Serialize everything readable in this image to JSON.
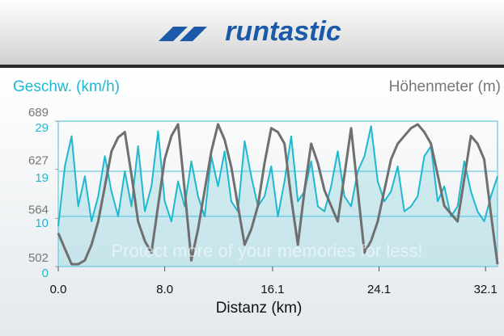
{
  "header": {
    "logo": "runtastic"
  },
  "chart_data": {
    "type": "line",
    "y_label": "Geschw. (km/h)",
    "y2_label": "Höhenmeter (m)",
    "x_label": "Distanz (km)",
    "annotation": "Protect more of your memories for less!",
    "x": [
      0,
      0.5,
      1,
      1.5,
      2,
      2.5,
      3,
      3.5,
      4,
      4.5,
      5,
      5.5,
      6,
      6.5,
      7,
      7.5,
      8,
      8.5,
      9,
      9.5,
      10,
      10.5,
      11,
      11.5,
      12,
      12.5,
      13,
      13.5,
      14,
      14.5,
      15,
      15.5,
      16,
      16.5,
      17,
      17.5,
      18,
      18.5,
      19,
      19.5,
      20,
      20.5,
      21,
      21.5,
      22,
      22.5,
      23,
      23.5,
      24,
      24.5,
      25,
      25.5,
      26,
      26.5,
      27,
      27.5,
      28,
      28.5,
      29,
      29.5,
      30,
      30.5,
      31,
      31.5,
      32,
      32.5,
      33
    ],
    "series": [
      {
        "name": "Geschw. (km/h)",
        "color": "#1fb8cf",
        "values": [
          8,
          20,
          26,
          12,
          18,
          9,
          14,
          22,
          15,
          10,
          19,
          12,
          24,
          11,
          16,
          27,
          13,
          9,
          17,
          12,
          21,
          14,
          10,
          22,
          16,
          23,
          13,
          11,
          25,
          18,
          12,
          14,
          20,
          10,
          17,
          26,
          13,
          15,
          21,
          12,
          11,
          16,
          23,
          14,
          12,
          19,
          22,
          28,
          17,
          13,
          15,
          20,
          11,
          12,
          14,
          22,
          24,
          13,
          16,
          10,
          12,
          21,
          15,
          11,
          9,
          14,
          18
        ]
      },
      {
        "name": "Höhenmeter (m)",
        "color": "#6f6f6f",
        "axis": "y2",
        "values": [
          545,
          525,
          505,
          505,
          510,
          530,
          560,
          605,
          650,
          668,
          675,
          620,
          560,
          535,
          520,
          580,
          640,
          670,
          685,
          600,
          510,
          550,
          600,
          650,
          685,
          665,
          630,
          580,
          530,
          550,
          580,
          635,
          680,
          675,
          660,
          590,
          530,
          600,
          660,
          635,
          600,
          580,
          560,
          620,
          680,
          600,
          520,
          535,
          560,
          600,
          640,
          660,
          670,
          680,
          685,
          675,
          660,
          620,
          580,
          570,
          560,
          615,
          670,
          660,
          640,
          570,
          505
        ]
      }
    ],
    "xlim": [
      0,
      33
    ],
    "xticks": [
      {
        "value": 0,
        "label": "0.0"
      },
      {
        "value": 8,
        "label": "8.0"
      },
      16.1,
      24.1,
      32.1
    ],
    "ylim": [
      0,
      29
    ],
    "yticks": [
      0,
      10,
      19,
      29
    ],
    "y2lim": [
      502,
      689
    ],
    "y2ticks": [
      502,
      564,
      627,
      689
    ],
    "grid": true
  }
}
